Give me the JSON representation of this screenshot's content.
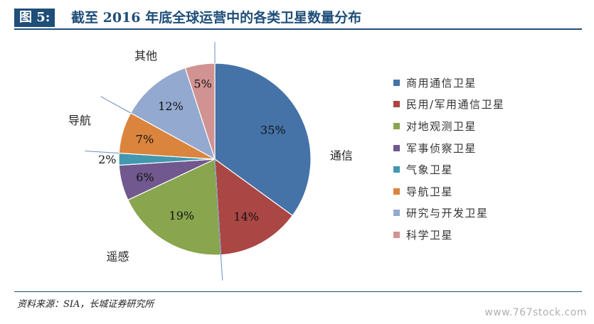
{
  "figure": {
    "tag": "图 5:",
    "title": "截至 2016 年底全球运营中的各类卫星数量分布",
    "source": "资料来源：SIA，长城证券研究所",
    "watermark": "www.767stock.com"
  },
  "chart_data": {
    "type": "pie",
    "title": "截至 2016 年底全球运营中的各类卫星数量分布",
    "categories": [
      "商用通信卫星",
      "民用/军用通信卫星",
      "对地观测卫星",
      "军事侦察卫星",
      "气象卫星",
      "导航卫星",
      "研究与开发卫星",
      "科学卫星"
    ],
    "values": [
      35,
      14,
      19,
      6,
      2,
      7,
      12,
      5
    ],
    "unit": "%",
    "data_labels": [
      "35%",
      "14%",
      "19%",
      "6%",
      "2%",
      "7%",
      "12%",
      "5%"
    ],
    "colors": [
      "#4572a7",
      "#aa4643",
      "#89a54e",
      "#71588f",
      "#4198af",
      "#db843d",
      "#93a9cf",
      "#d19392"
    ],
    "group_labels": [
      "通信",
      "遥感",
      "导航",
      "其他"
    ],
    "legend_position": "right"
  }
}
